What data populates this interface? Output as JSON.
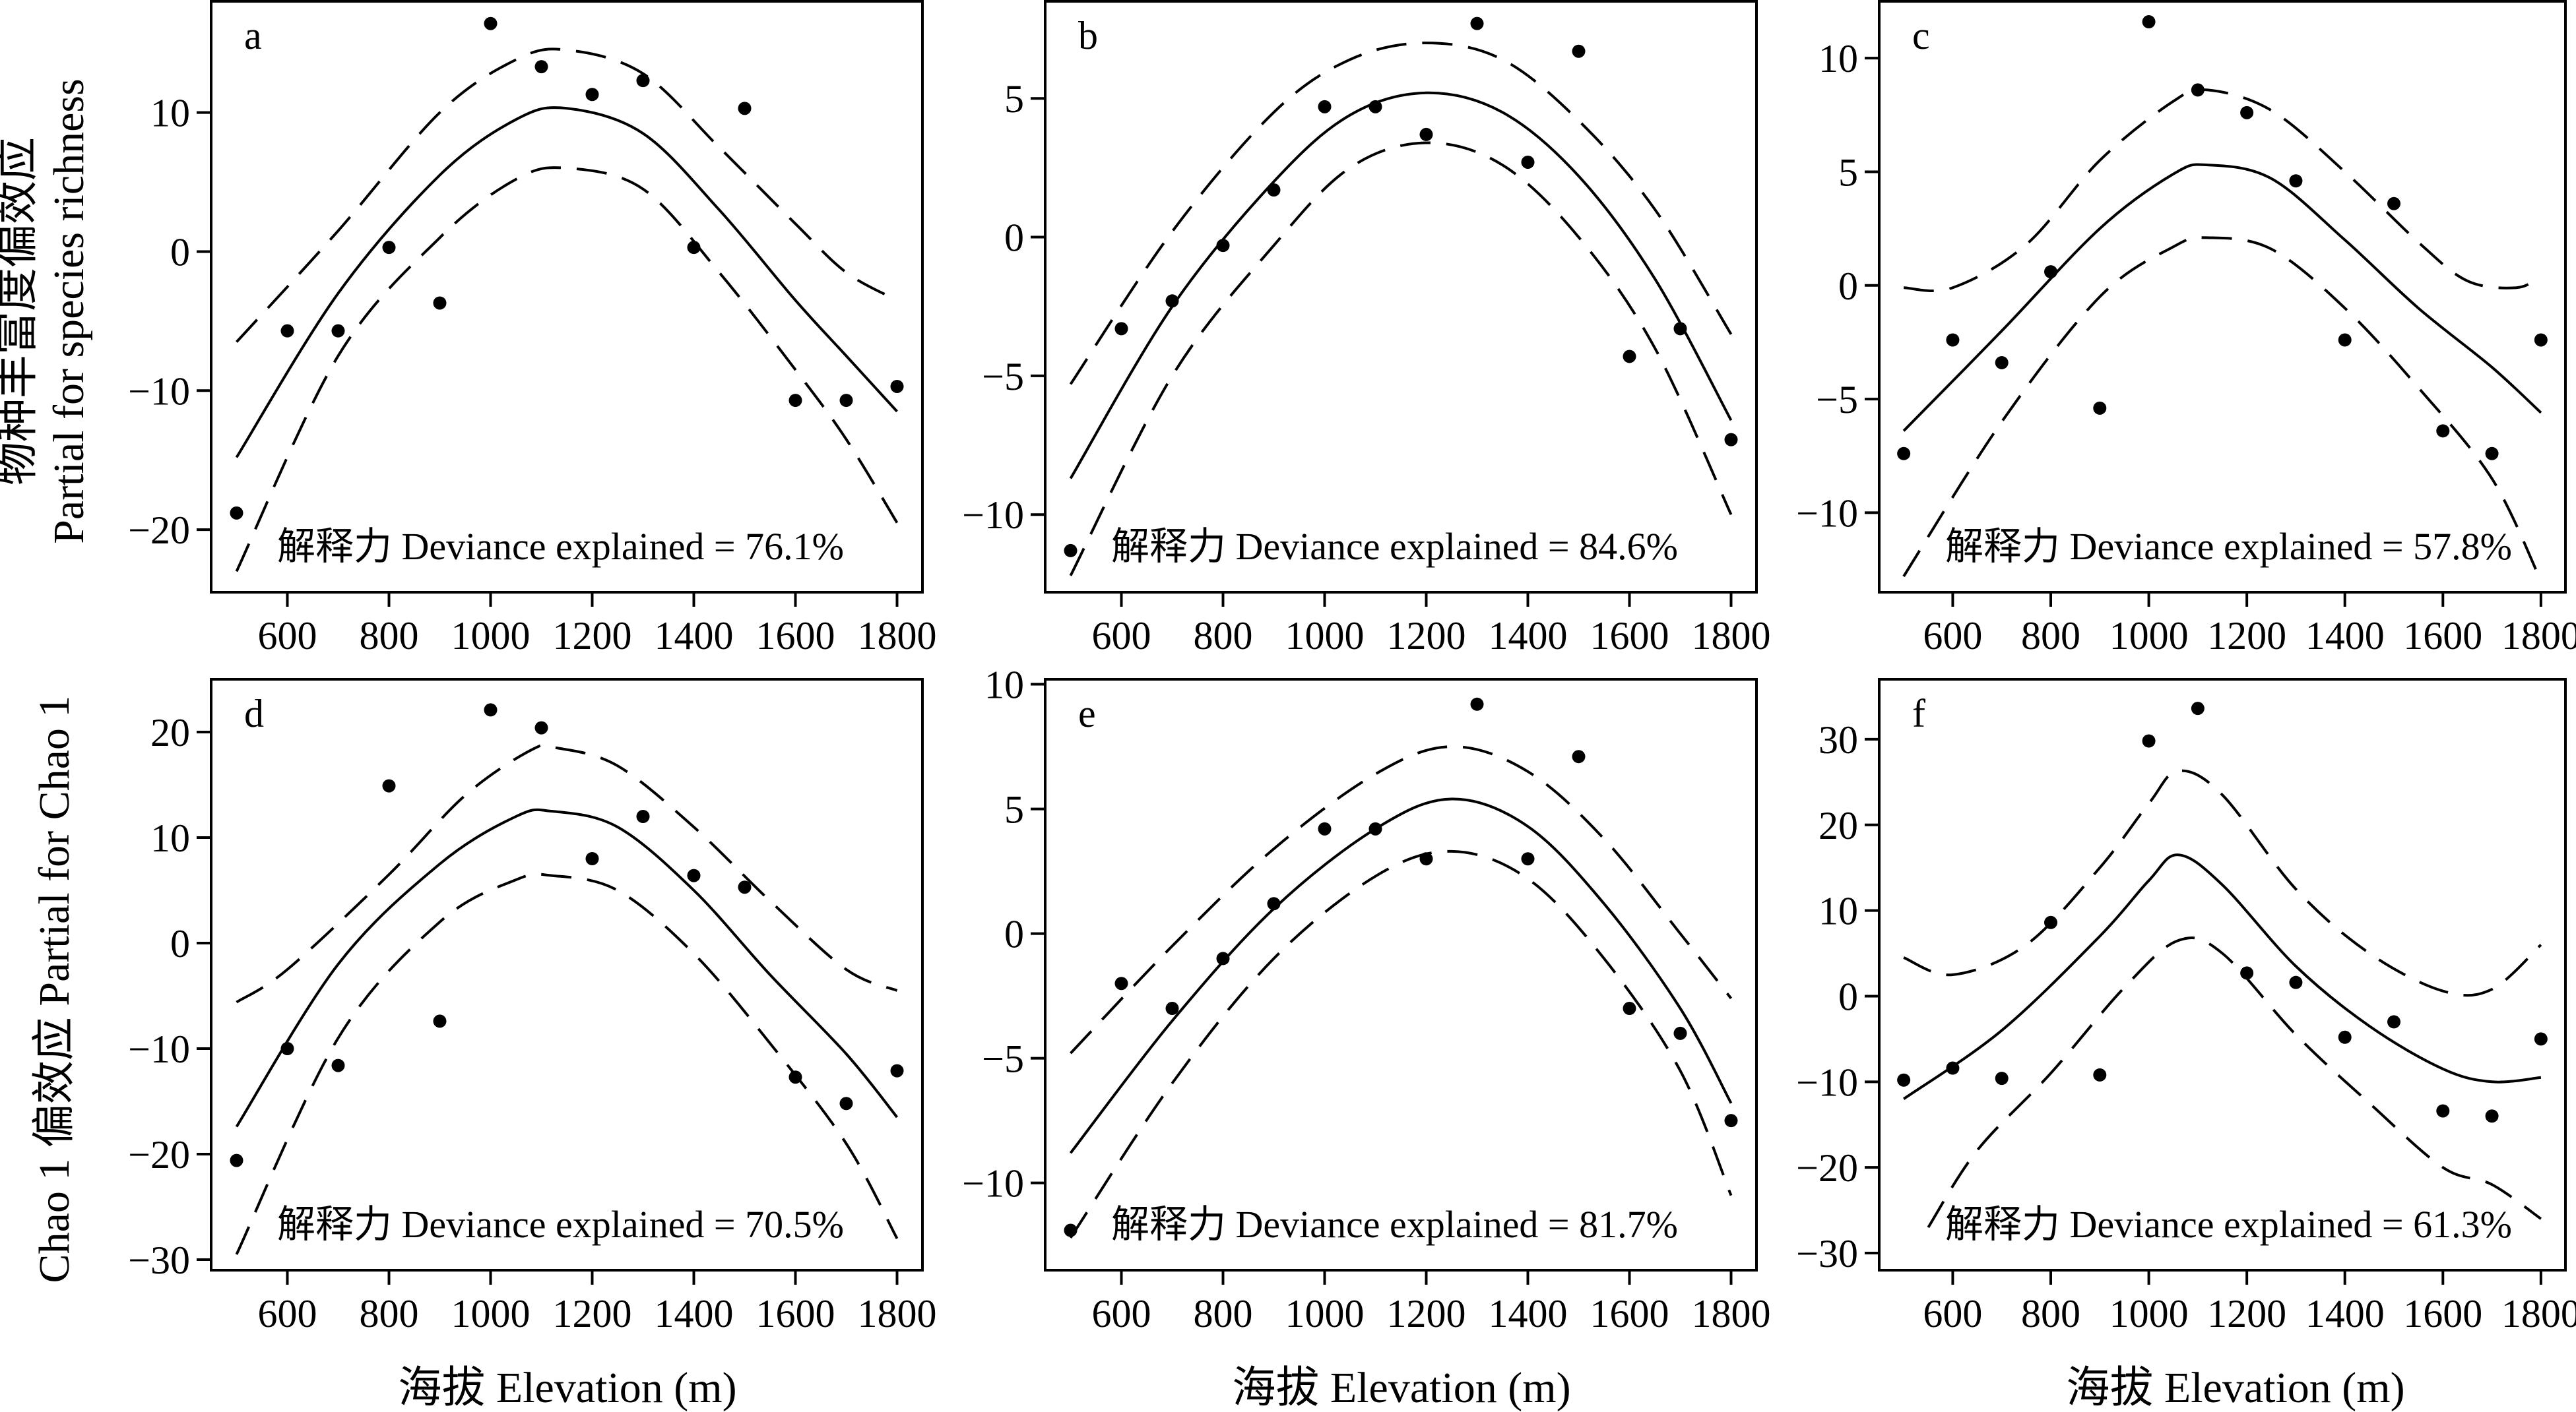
{
  "figure": {
    "row1_ylabel_cn": "物种丰富度偏效应",
    "row1_ylabel_en": "Partial for species richness",
    "row2_ylabel": "Chao 1 偏效应 Partial for Chao 1",
    "xlabel": "海拔 Elevation (m)"
  },
  "chart_data": [
    {
      "panel": "a",
      "type": "scatter",
      "annotation": "解释力 Deviance explained = 76.1%",
      "xlabel": "海拔 Elevation (m)",
      "ylabel": "物种丰富度偏效应 Partial for species richness",
      "xlim": [
        450,
        1850
      ],
      "ylim": [
        -24.5,
        18
      ],
      "xticks": [
        600,
        800,
        1000,
        1200,
        1400,
        1600,
        1800
      ],
      "yticks": [
        -20,
        -10,
        0,
        10
      ],
      "points": [
        [
          500,
          -18.8
        ],
        [
          600,
          -5.7
        ],
        [
          700,
          -5.7
        ],
        [
          800,
          0.3
        ],
        [
          900,
          -3.7
        ],
        [
          1000,
          16.4
        ],
        [
          1100,
          13.3
        ],
        [
          1200,
          11.3
        ],
        [
          1300,
          12.3
        ],
        [
          1400,
          0.3
        ],
        [
          1500,
          10.3
        ],
        [
          1600,
          -10.7
        ],
        [
          1700,
          -10.7
        ],
        [
          1800,
          -9.7
        ]
      ],
      "fit": [
        [
          500,
          -14.8
        ],
        [
          700,
          -3
        ],
        [
          900,
          5.5
        ],
        [
          1050,
          9.5
        ],
        [
          1150,
          10.3
        ],
        [
          1300,
          8.5
        ],
        [
          1450,
          3
        ],
        [
          1600,
          -3.5
        ],
        [
          1700,
          -7.5
        ],
        [
          1800,
          -11.5
        ]
      ],
      "upper": [
        [
          500,
          -6.5
        ],
        [
          700,
          1.5
        ],
        [
          900,
          10
        ],
        [
          1050,
          13.8
        ],
        [
          1150,
          14.5
        ],
        [
          1300,
          12.8
        ],
        [
          1450,
          7.5
        ],
        [
          1600,
          2
        ],
        [
          1700,
          -1.5
        ],
        [
          1800,
          -3.5
        ]
      ],
      "lower": [
        [
          500,
          -23
        ],
        [
          700,
          -7.5
        ],
        [
          900,
          1
        ],
        [
          1050,
          5.2
        ],
        [
          1150,
          6
        ],
        [
          1300,
          4.5
        ],
        [
          1450,
          -1.5
        ],
        [
          1600,
          -8.5
        ],
        [
          1700,
          -13.5
        ],
        [
          1800,
          -19.5
        ]
      ]
    },
    {
      "panel": "b",
      "type": "scatter",
      "annotation": "解释力 Deviance explained = 84.6%",
      "xlabel": "海拔 Elevation (m)",
      "ylabel": "",
      "xlim": [
        450,
        1850
      ],
      "ylim": [
        -12.8,
        8.5
      ],
      "xticks": [
        600,
        800,
        1000,
        1200,
        1400,
        1600,
        1800
      ],
      "yticks": [
        -10,
        -5,
        0,
        5
      ],
      "points": [
        [
          500,
          -11.3
        ],
        [
          600,
          -3.3
        ],
        [
          700,
          -2.3
        ],
        [
          800,
          -0.3
        ],
        [
          900,
          1.7
        ],
        [
          1000,
          4.7
        ],
        [
          1100,
          4.7
        ],
        [
          1200,
          3.7
        ],
        [
          1300,
          7.7
        ],
        [
          1400,
          2.7
        ],
        [
          1500,
          6.7
        ],
        [
          1600,
          -4.3
        ],
        [
          1700,
          -3.3
        ],
        [
          1800,
          -7.3
        ]
      ],
      "fit": [
        [
          500,
          -8.7
        ],
        [
          700,
          -2.5
        ],
        [
          900,
          2
        ],
        [
          1050,
          4.4
        ],
        [
          1200,
          5.2
        ],
        [
          1350,
          4.5
        ],
        [
          1500,
          2.2
        ],
        [
          1650,
          -1.5
        ],
        [
          1800,
          -6.6
        ]
      ],
      "upper": [
        [
          500,
          -5.3
        ],
        [
          700,
          0.2
        ],
        [
          900,
          4.5
        ],
        [
          1050,
          6.4
        ],
        [
          1200,
          7
        ],
        [
          1350,
          6.4
        ],
        [
          1500,
          4.2
        ],
        [
          1650,
          1
        ],
        [
          1800,
          -3.5
        ]
      ],
      "lower": [
        [
          500,
          -12.2
        ],
        [
          700,
          -5
        ],
        [
          900,
          -0.3
        ],
        [
          1050,
          2.5
        ],
        [
          1200,
          3.4
        ],
        [
          1350,
          2.6
        ],
        [
          1500,
          0
        ],
        [
          1650,
          -4
        ],
        [
          1800,
          -10
        ]
      ]
    },
    {
      "panel": "c",
      "type": "scatter",
      "annotation": "解释力 Deviance explained = 57.8%",
      "xlabel": "海拔 Elevation (m)",
      "ylabel": "",
      "xlim": [
        450,
        1850
      ],
      "ylim": [
        -13.5,
        12.5
      ],
      "xticks": [
        600,
        800,
        1000,
        1200,
        1400,
        1600,
        1800
      ],
      "yticks": [
        -10,
        -5,
        0,
        5,
        10
      ],
      "points": [
        [
          500,
          -7.4
        ],
        [
          600,
          -2.4
        ],
        [
          700,
          -3.4
        ],
        [
          800,
          0.6
        ],
        [
          900,
          -5.4
        ],
        [
          1000,
          11.6
        ],
        [
          1100,
          8.6
        ],
        [
          1200,
          7.6
        ],
        [
          1300,
          4.6
        ],
        [
          1400,
          -2.4
        ],
        [
          1500,
          3.6
        ],
        [
          1600,
          -6.4
        ],
        [
          1700,
          -7.4
        ],
        [
          1800,
          -2.4
        ]
      ],
      "fit": [
        [
          500,
          -6.4
        ],
        [
          700,
          -2
        ],
        [
          900,
          2.5
        ],
        [
          1050,
          4.9
        ],
        [
          1120,
          5.3
        ],
        [
          1250,
          4.7
        ],
        [
          1400,
          2
        ],
        [
          1550,
          -1
        ],
        [
          1700,
          -3.6
        ],
        [
          1800,
          -5.6
        ]
      ],
      "upper": [
        [
          500,
          -0.1
        ],
        [
          600,
          -0.1
        ],
        [
          750,
          1.8
        ],
        [
          900,
          5.5
        ],
        [
          1050,
          8.1
        ],
        [
          1120,
          8.6
        ],
        [
          1250,
          7.7
        ],
        [
          1400,
          5
        ],
        [
          1550,
          1.9
        ],
        [
          1650,
          0.2
        ],
        [
          1750,
          -0.1
        ],
        [
          1800,
          0.4
        ]
      ],
      "lower": [
        [
          500,
          -12.8
        ],
        [
          700,
          -6
        ],
        [
          900,
          -0.5
        ],
        [
          1050,
          1.7
        ],
        [
          1120,
          2.1
        ],
        [
          1250,
          1.6
        ],
        [
          1400,
          -1
        ],
        [
          1550,
          -4.5
        ],
        [
          1700,
          -8.5
        ],
        [
          1800,
          -13
        ]
      ]
    },
    {
      "panel": "d",
      "type": "scatter",
      "annotation": "解释力 Deviance explained = 70.5%",
      "xlabel": "海拔 Elevation (m)",
      "ylabel": "Chao 1 偏效应 Partial for Chao 1",
      "xlim": [
        450,
        1850
      ],
      "ylim": [
        -31,
        25
      ],
      "xticks": [
        600,
        800,
        1000,
        1200,
        1400,
        1600,
        1800
      ],
      "yticks": [
        -30,
        -20,
        -10,
        0,
        10,
        20
      ],
      "points": [
        [
          500,
          -20.6
        ],
        [
          600,
          -10
        ],
        [
          700,
          -11.6
        ],
        [
          800,
          14.9
        ],
        [
          900,
          -7.4
        ],
        [
          1000,
          22.1
        ],
        [
          1100,
          20.4
        ],
        [
          1200,
          8
        ],
        [
          1300,
          12
        ],
        [
          1400,
          6.4
        ],
        [
          1500,
          5.3
        ],
        [
          1600,
          -12.7
        ],
        [
          1700,
          -15.2
        ],
        [
          1800,
          -12.1
        ]
      ],
      "fit": [
        [
          500,
          -17.4
        ],
        [
          700,
          -2
        ],
        [
          900,
          7.5
        ],
        [
          1050,
          12
        ],
        [
          1120,
          12.5
        ],
        [
          1250,
          11
        ],
        [
          1400,
          5
        ],
        [
          1550,
          -3
        ],
        [
          1700,
          -10.5
        ],
        [
          1800,
          -16.5
        ]
      ],
      "upper": [
        [
          500,
          -5.6
        ],
        [
          600,
          -2.5
        ],
        [
          800,
          6.5
        ],
        [
          950,
          14
        ],
        [
          1080,
          18.3
        ],
        [
          1130,
          18.5
        ],
        [
          1250,
          16.8
        ],
        [
          1400,
          11
        ],
        [
          1550,
          4
        ],
        [
          1700,
          -2.5
        ],
        [
          1800,
          -4.5
        ]
      ],
      "lower": [
        [
          500,
          -29.5
        ],
        [
          700,
          -9
        ],
        [
          900,
          2
        ],
        [
          1050,
          6
        ],
        [
          1120,
          6.4
        ],
        [
          1250,
          5
        ],
        [
          1400,
          -1
        ],
        [
          1550,
          -9.5
        ],
        [
          1700,
          -19
        ],
        [
          1800,
          -28
        ]
      ]
    },
    {
      "panel": "e",
      "type": "scatter",
      "annotation": "解释力 Deviance explained = 81.7%",
      "xlabel": "海拔 Elevation (m)",
      "ylabel": "",
      "xlim": [
        450,
        1850
      ],
      "ylim": [
        -13.5,
        10.2
      ],
      "xticks": [
        600,
        800,
        1000,
        1200,
        1400,
        1600,
        1800
      ],
      "yticks": [
        -10,
        -5,
        0,
        5,
        10
      ],
      "points": [
        [
          500,
          -11.9
        ],
        [
          600,
          -2
        ],
        [
          700,
          -3
        ],
        [
          800,
          -1
        ],
        [
          900,
          1.2
        ],
        [
          1000,
          4.2
        ],
        [
          1100,
          4.2
        ],
        [
          1200,
          3
        ],
        [
          1300,
          9.2
        ],
        [
          1400,
          3
        ],
        [
          1500,
          7.1
        ],
        [
          1600,
          -3
        ],
        [
          1700,
          -4
        ],
        [
          1800,
          -7.5
        ]
      ],
      "fit": [
        [
          500,
          -8.8
        ],
        [
          700,
          -3.5
        ],
        [
          900,
          1
        ],
        [
          1100,
          4.2
        ],
        [
          1250,
          5.4
        ],
        [
          1400,
          4.3
        ],
        [
          1550,
          1.2
        ],
        [
          1700,
          -3
        ],
        [
          1800,
          -6.8
        ]
      ],
      "upper": [
        [
          500,
          -4.8
        ],
        [
          700,
          -0.5
        ],
        [
          900,
          3.4
        ],
        [
          1100,
          6.4
        ],
        [
          1250,
          7.5
        ],
        [
          1400,
          6.5
        ],
        [
          1550,
          3.8
        ],
        [
          1700,
          0
        ],
        [
          1800,
          -2.6
        ]
      ],
      "lower": [
        [
          500,
          -12.2
        ],
        [
          700,
          -6
        ],
        [
          900,
          -1
        ],
        [
          1100,
          2.3
        ],
        [
          1250,
          3.3
        ],
        [
          1400,
          2.2
        ],
        [
          1550,
          -1
        ],
        [
          1700,
          -5.5
        ],
        [
          1800,
          -10.5
        ]
      ]
    },
    {
      "panel": "f",
      "type": "scatter",
      "annotation": "解释力 Deviance explained = 61.3%",
      "xlabel": "海拔 Elevation (m)",
      "ylabel": "",
      "xlim": [
        450,
        1850
      ],
      "ylim": [
        -32,
        37
      ],
      "xticks": [
        600,
        800,
        1000,
        1200,
        1400,
        1600,
        1800
      ],
      "yticks": [
        -30,
        -20,
        -10,
        0,
        10,
        20,
        30
      ],
      "points": [
        [
          500,
          -9.8
        ],
        [
          600,
          -8.4
        ],
        [
          700,
          -9.6
        ],
        [
          800,
          8.6
        ],
        [
          900,
          -9.2
        ],
        [
          1000,
          29.8
        ],
        [
          1100,
          33.6
        ],
        [
          1200,
          2.7
        ],
        [
          1300,
          1.6
        ],
        [
          1400,
          -4.8
        ],
        [
          1500,
          -3
        ],
        [
          1600,
          -13.4
        ],
        [
          1700,
          -14
        ],
        [
          1800,
          -5
        ]
      ],
      "fit": [
        [
          500,
          -12
        ],
        [
          700,
          -4
        ],
        [
          900,
          7
        ],
        [
          1000,
          13.5
        ],
        [
          1060,
          16.5
        ],
        [
          1150,
          13
        ],
        [
          1300,
          3.5
        ],
        [
          1450,
          -3.5
        ],
        [
          1600,
          -8.5
        ],
        [
          1700,
          -10
        ],
        [
          1800,
          -9.5
        ]
      ],
      "upper": [
        [
          500,
          4.5
        ],
        [
          600,
          2.5
        ],
        [
          750,
          6
        ],
        [
          900,
          15
        ],
        [
          1000,
          22.5
        ],
        [
          1060,
          26.3
        ],
        [
          1150,
          23.5
        ],
        [
          1300,
          12.5
        ],
        [
          1450,
          5
        ],
        [
          1600,
          0.6
        ],
        [
          1700,
          0.8
        ],
        [
          1800,
          6
        ]
      ],
      "lower": [
        [
          550,
          -27
        ],
        [
          650,
          -18
        ],
        [
          800,
          -9
        ],
        [
          950,
          1
        ],
        [
          1060,
          6.5
        ],
        [
          1150,
          5
        ],
        [
          1300,
          -4.5
        ],
        [
          1450,
          -12.5
        ],
        [
          1600,
          -20
        ],
        [
          1700,
          -22
        ],
        [
          1800,
          -26
        ]
      ]
    }
  ]
}
